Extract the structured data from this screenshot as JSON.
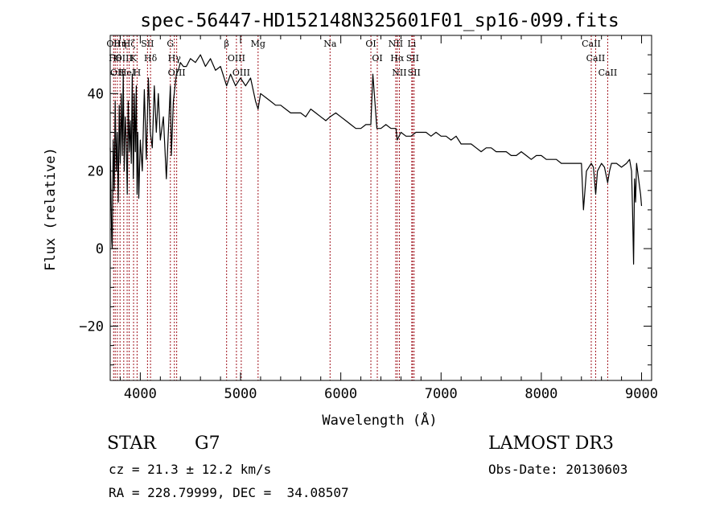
{
  "chart_data": {
    "type": "line",
    "title": "spec-56447-HD152148N325601F01_sp16-099.fits",
    "xlabel": "Wavelength (Å)",
    "ylabel": "Flux (relative)",
    "xlim": [
      3700,
      9100
    ],
    "ylim": [
      -34,
      55
    ],
    "xticks": [
      {
        "value": 4000,
        "label": "4000"
      },
      {
        "value": 5000,
        "label": "5000"
      },
      {
        "value": 6000,
        "label": "6000"
      },
      {
        "value": 7000,
        "label": "7000"
      },
      {
        "value": 8000,
        "label": "8000"
      },
      {
        "value": 9000,
        "label": "9000"
      }
    ],
    "yticks": [
      {
        "value": -20,
        "label": "−20"
      },
      {
        "value": 0,
        "label": "0"
      },
      {
        "value": 20,
        "label": "20"
      },
      {
        "value": 40,
        "label": "40"
      }
    ],
    "series": [
      {
        "name": "spectrum",
        "color": "#000000",
        "x": [
          3700,
          3715,
          3720,
          3730,
          3740,
          3750,
          3760,
          3770,
          3780,
          3790,
          3800,
          3810,
          3820,
          3830,
          3840,
          3850,
          3860,
          3870,
          3880,
          3890,
          3900,
          3910,
          3920,
          3930,
          3934,
          3940,
          3950,
          3960,
          3968,
          3975,
          3985,
          4000,
          4020,
          4040,
          4060,
          4080,
          4100,
          4120,
          4140,
          4160,
          4180,
          4200,
          4230,
          4260,
          4290,
          4300,
          4310,
          4330,
          4360,
          4380,
          4400,
          4430,
          4460,
          4500,
          4550,
          4600,
          4650,
          4700,
          4750,
          4800,
          4861,
          4900,
          4950,
          5000,
          5050,
          5100,
          5150,
          5175,
          5200,
          5250,
          5300,
          5350,
          5400,
          5450,
          5500,
          5550,
          5600,
          5650,
          5700,
          5750,
          5800,
          5850,
          5893,
          5950,
          6000,
          6050,
          6100,
          6150,
          6200,
          6250,
          6300,
          6320,
          6340,
          6360,
          6400,
          6450,
          6500,
          6550,
          6563,
          6600,
          6650,
          6700,
          6750,
          6800,
          6850,
          6900,
          6950,
          7000,
          7050,
          7100,
          7150,
          7200,
          7250,
          7300,
          7350,
          7400,
          7450,
          7500,
          7550,
          7600,
          7650,
          7700,
          7750,
          7800,
          7850,
          7900,
          7950,
          8000,
          8050,
          8100,
          8150,
          8200,
          8250,
          8300,
          8350,
          8380,
          8400,
          8420,
          8450,
          8498,
          8520,
          8542,
          8560,
          8600,
          8630,
          8662,
          8680,
          8700,
          8750,
          8800,
          8850,
          8880,
          8900,
          8910,
          8920,
          8930,
          8940,
          8950,
          8960,
          8970,
          8980,
          8990,
          9000
        ],
        "values": [
          26,
          2,
          0,
          28,
          15,
          38,
          20,
          30,
          12,
          37,
          22,
          40,
          24,
          45,
          20,
          34,
          28,
          14,
          38,
          25,
          33,
          22,
          45,
          18,
          24,
          40,
          25,
          42,
          14,
          30,
          13,
          28,
          20,
          41,
          23,
          44,
          30,
          26,
          42,
          30,
          40,
          28,
          34,
          18,
          36,
          42,
          24,
          38,
          45,
          46,
          48,
          47,
          47,
          49,
          48,
          50,
          47,
          49,
          46,
          47,
          42,
          45,
          42,
          44,
          42,
          44,
          38,
          36,
          40,
          39,
          38,
          37,
          37,
          36,
          35,
          35,
          35,
          34,
          36,
          35,
          34,
          33,
          34,
          35,
          34,
          33,
          32,
          31,
          31,
          32,
          32,
          45,
          38,
          31,
          31,
          32,
          31,
          31,
          28,
          30,
          29,
          29,
          30,
          30,
          30,
          29,
          30,
          29,
          29,
          28,
          29,
          27,
          27,
          27,
          26,
          25,
          26,
          26,
          25,
          25,
          25,
          24,
          24,
          25,
          24,
          23,
          24,
          24,
          23,
          23,
          23,
          22,
          22,
          22,
          22,
          22,
          22,
          10,
          20,
          22,
          21,
          14,
          20,
          22,
          21,
          17,
          20,
          22,
          22,
          21,
          22,
          23,
          20,
          10,
          -4,
          18,
          12,
          22,
          20,
          18,
          16,
          14,
          11
        ]
      }
    ],
    "lines": [
      {
        "x": 3734,
        "label": "OII"
      },
      {
        "x": 3750,
        "label": "Hθ"
      },
      {
        "x": 3771,
        "label": "OII"
      },
      {
        "x": 3798,
        "label": "Hη"
      },
      {
        "x": 3835,
        "label": "OIII"
      },
      {
        "x": 3869,
        "label": "HeI"
      },
      {
        "x": 3889,
        "label": "Hζ"
      },
      {
        "x": 3933,
        "label": "K"
      },
      {
        "x": 3968,
        "label": "H"
      },
      {
        "x": 4072,
        "label": "SII"
      },
      {
        "x": 4102,
        "label": "Hδ"
      },
      {
        "x": 4300,
        "label": "G"
      },
      {
        "x": 4340,
        "label": "Hγ"
      },
      {
        "x": 4363,
        "label": "OIII"
      },
      {
        "x": 4861,
        "label": "β"
      },
      {
        "x": 4959,
        "label": "OIII"
      },
      {
        "x": 5007,
        "label": "OIII"
      },
      {
        "x": 5175,
        "label": "Mg"
      },
      {
        "x": 5893,
        "label": "Na"
      },
      {
        "x": 6300,
        "label": "OI"
      },
      {
        "x": 6364,
        "label": "OI"
      },
      {
        "x": 6548,
        "label": "NII"
      },
      {
        "x": 6563,
        "label": "Hα"
      },
      {
        "x": 6584,
        "label": "NII"
      },
      {
        "x": 6708,
        "label": "Li"
      },
      {
        "x": 6716,
        "label": "SII"
      },
      {
        "x": 6731,
        "label": "SII"
      },
      {
        "x": 8498,
        "label": "CaII"
      },
      {
        "x": 8542,
        "label": "CaII"
      },
      {
        "x": 8662,
        "label": "CaII"
      }
    ],
    "line_color": "#a0141e",
    "grid": false,
    "legend": "none"
  },
  "info": {
    "objtype": "STAR",
    "subclass": "G7",
    "survey": "LAMOST DR3",
    "cz": "cz = 21.3 ± 12.2 km/s",
    "obs_date": "Obs-Date: 20130603",
    "radec": "RA = 228.79999, DEC =  34.08507"
  }
}
